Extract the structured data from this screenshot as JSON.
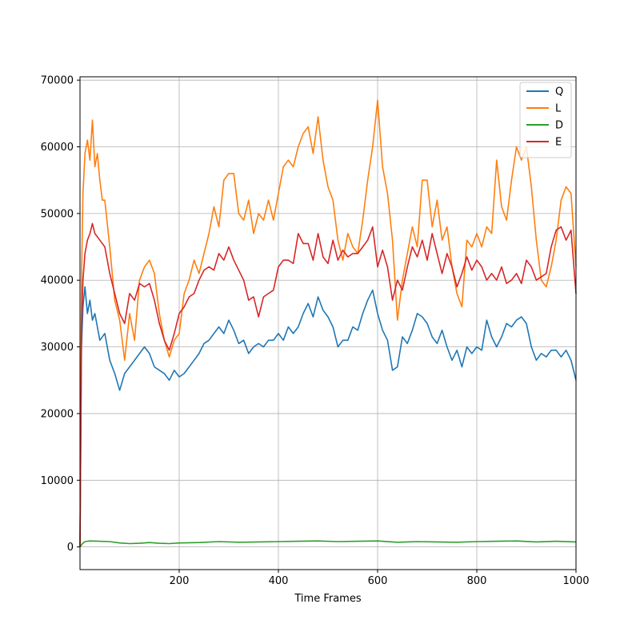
{
  "chart_data": {
    "type": "line",
    "title": "",
    "xlabel": "Time Frames",
    "ylabel": "",
    "xlim": [
      0,
      1000
    ],
    "ylim": [
      -3400,
      70500
    ],
    "xticks": [
      200,
      400,
      600,
      800,
      1000
    ],
    "yticks": [
      0,
      10000,
      20000,
      30000,
      40000,
      50000,
      60000,
      70000
    ],
    "grid": true,
    "legend_position": "top-right",
    "series": [
      {
        "name": "Q",
        "color": "#1f77b4",
        "x": [
          0,
          3,
          6,
          10,
          15,
          20,
          25,
          30,
          40,
          50,
          60,
          70,
          80,
          90,
          100,
          110,
          120,
          130,
          140,
          150,
          160,
          170,
          180,
          190,
          200,
          210,
          220,
          230,
          240,
          250,
          260,
          270,
          280,
          290,
          300,
          310,
          320,
          330,
          340,
          350,
          360,
          370,
          380,
          390,
          400,
          410,
          420,
          430,
          440,
          450,
          460,
          470,
          480,
          490,
          500,
          510,
          520,
          530,
          540,
          550,
          560,
          570,
          580,
          590,
          600,
          610,
          620,
          630,
          640,
          650,
          660,
          670,
          680,
          690,
          700,
          710,
          720,
          730,
          740,
          750,
          760,
          770,
          780,
          790,
          800,
          810,
          820,
          830,
          840,
          850,
          860,
          870,
          880,
          890,
          900,
          910,
          920,
          930,
          940,
          950,
          960,
          970,
          980,
          990,
          1000
        ],
        "y": [
          0,
          30000,
          36000,
          39000,
          35000,
          37000,
          34000,
          35000,
          31000,
          32000,
          28000,
          26000,
          23500,
          26000,
          27000,
          28000,
          29000,
          30000,
          29000,
          27000,
          26500,
          26000,
          25000,
          26500,
          25500,
          26000,
          27000,
          28000,
          29000,
          30500,
          31000,
          32000,
          33000,
          32000,
          34000,
          32500,
          30500,
          31000,
          29000,
          30000,
          30500,
          30000,
          31000,
          31000,
          32000,
          31000,
          33000,
          32000,
          33000,
          35000,
          36500,
          34500,
          37500,
          35500,
          34500,
          33000,
          30000,
          31000,
          31000,
          33000,
          32500,
          35000,
          37000,
          38500,
          35000,
          32500,
          31000,
          26500,
          27000,
          31500,
          30500,
          32500,
          35000,
          34500,
          33500,
          31500,
          30500,
          32500,
          30000,
          28000,
          29500,
          27000,
          30000,
          29000,
          30000,
          29500,
          34000,
          31500,
          30000,
          31500,
          33500,
          33000,
          34000,
          34500,
          33500,
          30000,
          28000,
          29000,
          28500,
          29500,
          29500,
          28500,
          29500,
          28000,
          25000
        ]
      },
      {
        "name": "L",
        "color": "#ff7f0e",
        "x": [
          0,
          3,
          6,
          10,
          15,
          20,
          25,
          30,
          35,
          40,
          45,
          50,
          60,
          70,
          80,
          90,
          100,
          110,
          120,
          130,
          140,
          150,
          160,
          170,
          180,
          190,
          200,
          210,
          220,
          230,
          240,
          250,
          260,
          270,
          280,
          290,
          300,
          310,
          320,
          330,
          340,
          350,
          360,
          370,
          380,
          390,
          400,
          410,
          420,
          430,
          440,
          450,
          460,
          470,
          480,
          490,
          500,
          510,
          520,
          530,
          540,
          550,
          560,
          570,
          580,
          590,
          600,
          610,
          620,
          630,
          640,
          650,
          660,
          670,
          680,
          690,
          700,
          710,
          720,
          730,
          740,
          750,
          760,
          770,
          780,
          790,
          800,
          810,
          820,
          830,
          840,
          850,
          860,
          870,
          880,
          890,
          900,
          910,
          920,
          930,
          940,
          950,
          960,
          970,
          980,
          990,
          1000
        ],
        "y": [
          0,
          40000,
          53000,
          59000,
          61000,
          58000,
          64000,
          57000,
          59000,
          55000,
          52000,
          52000,
          45000,
          37000,
          34000,
          28000,
          35000,
          31000,
          40000,
          42000,
          43000,
          41000,
          35000,
          31000,
          28500,
          31000,
          32000,
          38000,
          40000,
          43000,
          41000,
          44000,
          47000,
          51000,
          48000,
          55000,
          56000,
          56000,
          50000,
          49000,
          52000,
          47000,
          50000,
          49000,
          52000,
          49000,
          53000,
          57000,
          58000,
          57000,
          60000,
          62000,
          63000,
          59000,
          64500,
          58000,
          54000,
          52000,
          46000,
          43000,
          47000,
          45000,
          44000,
          49000,
          55000,
          60000,
          67000,
          57000,
          53000,
          46000,
          34000,
          40000,
          44000,
          48000,
          45000,
          55000,
          55000,
          48000,
          52000,
          46000,
          48000,
          42000,
          38000,
          36000,
          46000,
          45000,
          47000,
          45000,
          48000,
          47000,
          58000,
          51000,
          49000,
          55000,
          60000,
          58000,
          60000,
          54000,
          46000,
          40000,
          39000,
          42000,
          46000,
          52000,
          54000,
          53000,
          42000
        ]
      },
      {
        "name": "D",
        "color": "#2ca02c",
        "x": [
          0,
          5,
          10,
          20,
          40,
          60,
          80,
          100,
          120,
          140,
          160,
          180,
          200,
          240,
          280,
          320,
          360,
          400,
          440,
          480,
          520,
          560,
          600,
          640,
          680,
          720,
          760,
          800,
          840,
          880,
          920,
          960,
          1000
        ],
        "y": [
          0,
          500,
          800,
          900,
          850,
          800,
          600,
          500,
          550,
          650,
          550,
          500,
          600,
          650,
          800,
          700,
          750,
          800,
          850,
          900,
          800,
          850,
          900,
          700,
          800,
          750,
          700,
          800,
          850,
          900,
          750,
          850,
          750
        ]
      },
      {
        "name": "E",
        "color": "#d62728",
        "x": [
          0,
          3,
          6,
          10,
          15,
          20,
          25,
          30,
          40,
          50,
          60,
          70,
          80,
          90,
          100,
          110,
          120,
          130,
          140,
          150,
          160,
          170,
          180,
          190,
          200,
          210,
          220,
          230,
          240,
          250,
          260,
          270,
          280,
          290,
          300,
          310,
          320,
          330,
          340,
          350,
          360,
          370,
          380,
          390,
          400,
          410,
          420,
          430,
          440,
          450,
          460,
          470,
          480,
          490,
          500,
          510,
          520,
          530,
          540,
          550,
          560,
          570,
          580,
          590,
          600,
          610,
          620,
          630,
          640,
          650,
          660,
          670,
          680,
          690,
          700,
          710,
          720,
          730,
          740,
          750,
          760,
          770,
          780,
          790,
          800,
          810,
          820,
          830,
          840,
          850,
          860,
          870,
          880,
          890,
          900,
          910,
          920,
          930,
          940,
          950,
          960,
          970,
          980,
          990,
          1000
        ],
        "y": [
          0,
          33000,
          40000,
          44000,
          46000,
          47000,
          48500,
          47000,
          46000,
          45000,
          41000,
          38000,
          35000,
          33500,
          38000,
          37000,
          39500,
          39000,
          39500,
          37000,
          33500,
          31000,
          29500,
          32000,
          35000,
          36000,
          37500,
          38000,
          40000,
          41500,
          42000,
          41500,
          44000,
          43000,
          45000,
          43000,
          41500,
          40000,
          37000,
          37500,
          34500,
          37500,
          38000,
          38500,
          42000,
          43000,
          43000,
          42500,
          47000,
          45500,
          45500,
          43000,
          47000,
          43500,
          42500,
          46000,
          43000,
          44500,
          43500,
          44000,
          44000,
          45000,
          46000,
          48000,
          42000,
          44500,
          42000,
          37000,
          40000,
          38500,
          42000,
          45000,
          43500,
          46000,
          43000,
          47000,
          44000,
          41000,
          44000,
          42000,
          39000,
          41000,
          43500,
          41500,
          43000,
          42000,
          40000,
          41000,
          40000,
          42000,
          39500,
          40000,
          41000,
          39500,
          43000,
          42000,
          40000,
          40500,
          41000,
          45000,
          47500,
          48000,
          46000,
          47500,
          38000
        ]
      }
    ]
  }
}
